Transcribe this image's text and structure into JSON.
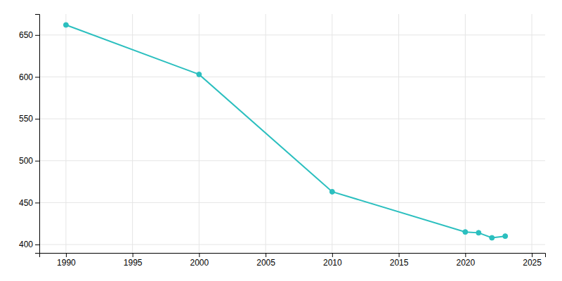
{
  "chart_data": {
    "type": "line",
    "x": [
      1990,
      2000,
      2010,
      2020,
      2021,
      2022,
      2023
    ],
    "values": [
      662,
      603,
      463,
      415,
      414,
      408,
      410
    ],
    "color": "#2bbfbf",
    "marker": "circle",
    "xlim": [
      1988,
      2026
    ],
    "ylim": [
      390,
      675
    ],
    "xticks": [
      1990,
      1995,
      2000,
      2005,
      2010,
      2015,
      2020,
      2025
    ],
    "yticks": [
      400,
      450,
      500,
      550,
      600,
      650
    ],
    "grid": true
  }
}
